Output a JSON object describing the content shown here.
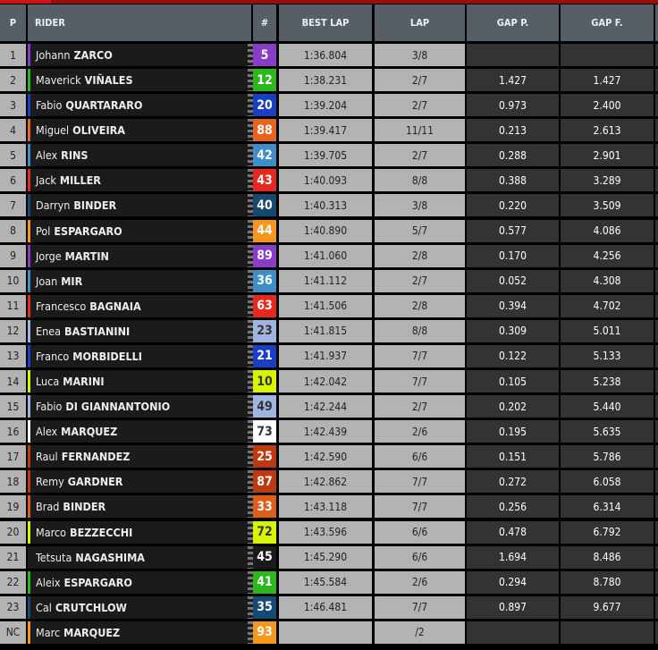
{
  "header": {
    "pos": "P",
    "rider": "RIDER",
    "number": "#",
    "best_lap": "BEST LAP",
    "lap": "LAP",
    "gap_prev": "GAP P.",
    "gap_first": "GAP F."
  },
  "rows": [
    {
      "pos": "1",
      "first": "Johann",
      "last": "ZARCO",
      "number": "5",
      "color": "#8a3bc8",
      "text": "#ffffff",
      "best": "1:36.804",
      "lap": "3/8",
      "gap_prev": "",
      "gap_first": ""
    },
    {
      "pos": "2",
      "first": "Maverick",
      "last": "VIÑALES",
      "number": "12",
      "color": "#2cb81c",
      "text": "#ffffff",
      "best": "1:38.231",
      "lap": "2/7",
      "gap_prev": "1.427",
      "gap_first": "1.427"
    },
    {
      "pos": "3",
      "first": "Fabio",
      "last": "QUARTARARO",
      "number": "20",
      "color": "#1a3fc4",
      "text": "#ffffff",
      "best": "1:39.204",
      "lap": "2/7",
      "gap_prev": "0.973",
      "gap_first": "2.400"
    },
    {
      "pos": "4",
      "first": "Miguel",
      "last": "OLIVEIRA",
      "number": "88",
      "color": "#e8641e",
      "text": "#ffffff",
      "best": "1:39.417",
      "lap": "11/11",
      "gap_prev": "0.213",
      "gap_first": "2.613"
    },
    {
      "pos": "5",
      "first": "Alex",
      "last": "RINS",
      "number": "42",
      "color": "#3d8ec9",
      "text": "#ffffff",
      "best": "1:39.705",
      "lap": "2/7",
      "gap_prev": "0.288",
      "gap_first": "2.901"
    },
    {
      "pos": "6",
      "first": "Jack",
      "last": "MILLER",
      "number": "43",
      "color": "#e8281e",
      "text": "#ffffff",
      "best": "1:40.093",
      "lap": "8/8",
      "gap_prev": "0.388",
      "gap_first": "3.289"
    },
    {
      "pos": "7",
      "first": "Darryn",
      "last": "BINDER",
      "number": "40",
      "color": "#17496e",
      "text": "#ffffff",
      "best": "1:40.313",
      "lap": "3/8",
      "gap_prev": "0.220",
      "gap_first": "3.509"
    },
    {
      "pos": "8",
      "first": "Pol",
      "last": "ESPARGARO",
      "number": "44",
      "color": "#f7961c",
      "text": "#ffffff",
      "best": "1:40.890",
      "lap": "5/7",
      "gap_prev": "0.577",
      "gap_first": "4.086"
    },
    {
      "pos": "9",
      "first": "Jorge",
      "last": "MARTIN",
      "number": "89",
      "color": "#8a3bc8",
      "text": "#ffffff",
      "best": "1:41.060",
      "lap": "2/8",
      "gap_prev": "0.170",
      "gap_first": "4.256"
    },
    {
      "pos": "10",
      "first": "Joan",
      "last": "MIR",
      "number": "36",
      "color": "#3d8ec9",
      "text": "#ffffff",
      "best": "1:41.112",
      "lap": "2/7",
      "gap_prev": "0.052",
      "gap_first": "4.308"
    },
    {
      "pos": "11",
      "first": "Francesco",
      "last": "BAGNAIA",
      "number": "63",
      "color": "#e8281e",
      "text": "#ffffff",
      "best": "1:41.506",
      "lap": "2/8",
      "gap_prev": "0.394",
      "gap_first": "4.702"
    },
    {
      "pos": "12",
      "first": "Enea",
      "last": "BASTIANINI",
      "number": "23",
      "color": "#9fb4e0",
      "text": "#333333",
      "best": "1:41.815",
      "lap": "8/8",
      "gap_prev": "0.309",
      "gap_first": "5.011"
    },
    {
      "pos": "13",
      "first": "Franco",
      "last": "MORBIDELLI",
      "number": "21",
      "color": "#1a3fc4",
      "text": "#ffffff",
      "best": "1:41.937",
      "lap": "7/7",
      "gap_prev": "0.122",
      "gap_first": "5.133"
    },
    {
      "pos": "14",
      "first": "Luca",
      "last": "MARINI",
      "number": "10",
      "color": "#d8f500",
      "text": "#333333",
      "best": "1:42.042",
      "lap": "7/7",
      "gap_prev": "0.105",
      "gap_first": "5.238"
    },
    {
      "pos": "15",
      "first": "Fabio",
      "last": "DI GIANNANTONIO",
      "number": "49",
      "color": "#9fb4e0",
      "text": "#333333",
      "best": "1:42.244",
      "lap": "2/7",
      "gap_prev": "0.202",
      "gap_first": "5.440"
    },
    {
      "pos": "16",
      "first": "Alex",
      "last": "MARQUEZ",
      "number": "73",
      "color": "#ffffff",
      "text": "#333333",
      "best": "1:42.439",
      "lap": "2/6",
      "gap_prev": "0.195",
      "gap_first": "5.635"
    },
    {
      "pos": "17",
      "first": "Raul",
      "last": "FERNANDEZ",
      "number": "25",
      "color": "#c0380e",
      "text": "#ffffff",
      "best": "1:42.590",
      "lap": "6/6",
      "gap_prev": "0.151",
      "gap_first": "5.786"
    },
    {
      "pos": "18",
      "first": "Remy",
      "last": "GARDNER",
      "number": "87",
      "color": "#c0380e",
      "text": "#ffffff",
      "best": "1:42.862",
      "lap": "7/7",
      "gap_prev": "0.272",
      "gap_first": "6.058"
    },
    {
      "pos": "19",
      "first": "Brad",
      "last": "BINDER",
      "number": "33",
      "color": "#e05c18",
      "text": "#ffffff",
      "best": "1:43.118",
      "lap": "7/7",
      "gap_prev": "0.256",
      "gap_first": "6.314"
    },
    {
      "pos": "20",
      "first": "Marco",
      "last": "BEZZECCHI",
      "number": "72",
      "color": "#d8f500",
      "text": "#333333",
      "best": "1:43.596",
      "lap": "6/6",
      "gap_prev": "0.478",
      "gap_first": "6.792"
    },
    {
      "pos": "21",
      "first": "Tetsuta",
      "last": "NAGASHIMA",
      "number": "45",
      "color": "#1b1b1b",
      "text": "#ffffff",
      "best": "1:45.290",
      "lap": "6/6",
      "gap_prev": "1.694",
      "gap_first": "8.486"
    },
    {
      "pos": "22",
      "first": "Aleix",
      "last": "ESPARGARO",
      "number": "41",
      "color": "#2cb81c",
      "text": "#ffffff",
      "best": "1:45.584",
      "lap": "2/6",
      "gap_prev": "0.294",
      "gap_first": "8.780"
    },
    {
      "pos": "23",
      "first": "Cal",
      "last": "CRUTCHLOW",
      "number": "35",
      "color": "#164a72",
      "text": "#ffffff",
      "best": "1:46.481",
      "lap": "7/7",
      "gap_prev": "0.897",
      "gap_first": "9.677"
    },
    {
      "pos": "NC",
      "first": "Marc",
      "last": "MARQUEZ",
      "number": "93",
      "color": "#f7961c",
      "text": "#ffffff",
      "best": "",
      "lap": "/2",
      "gap_prev": "",
      "gap_first": ""
    }
  ]
}
